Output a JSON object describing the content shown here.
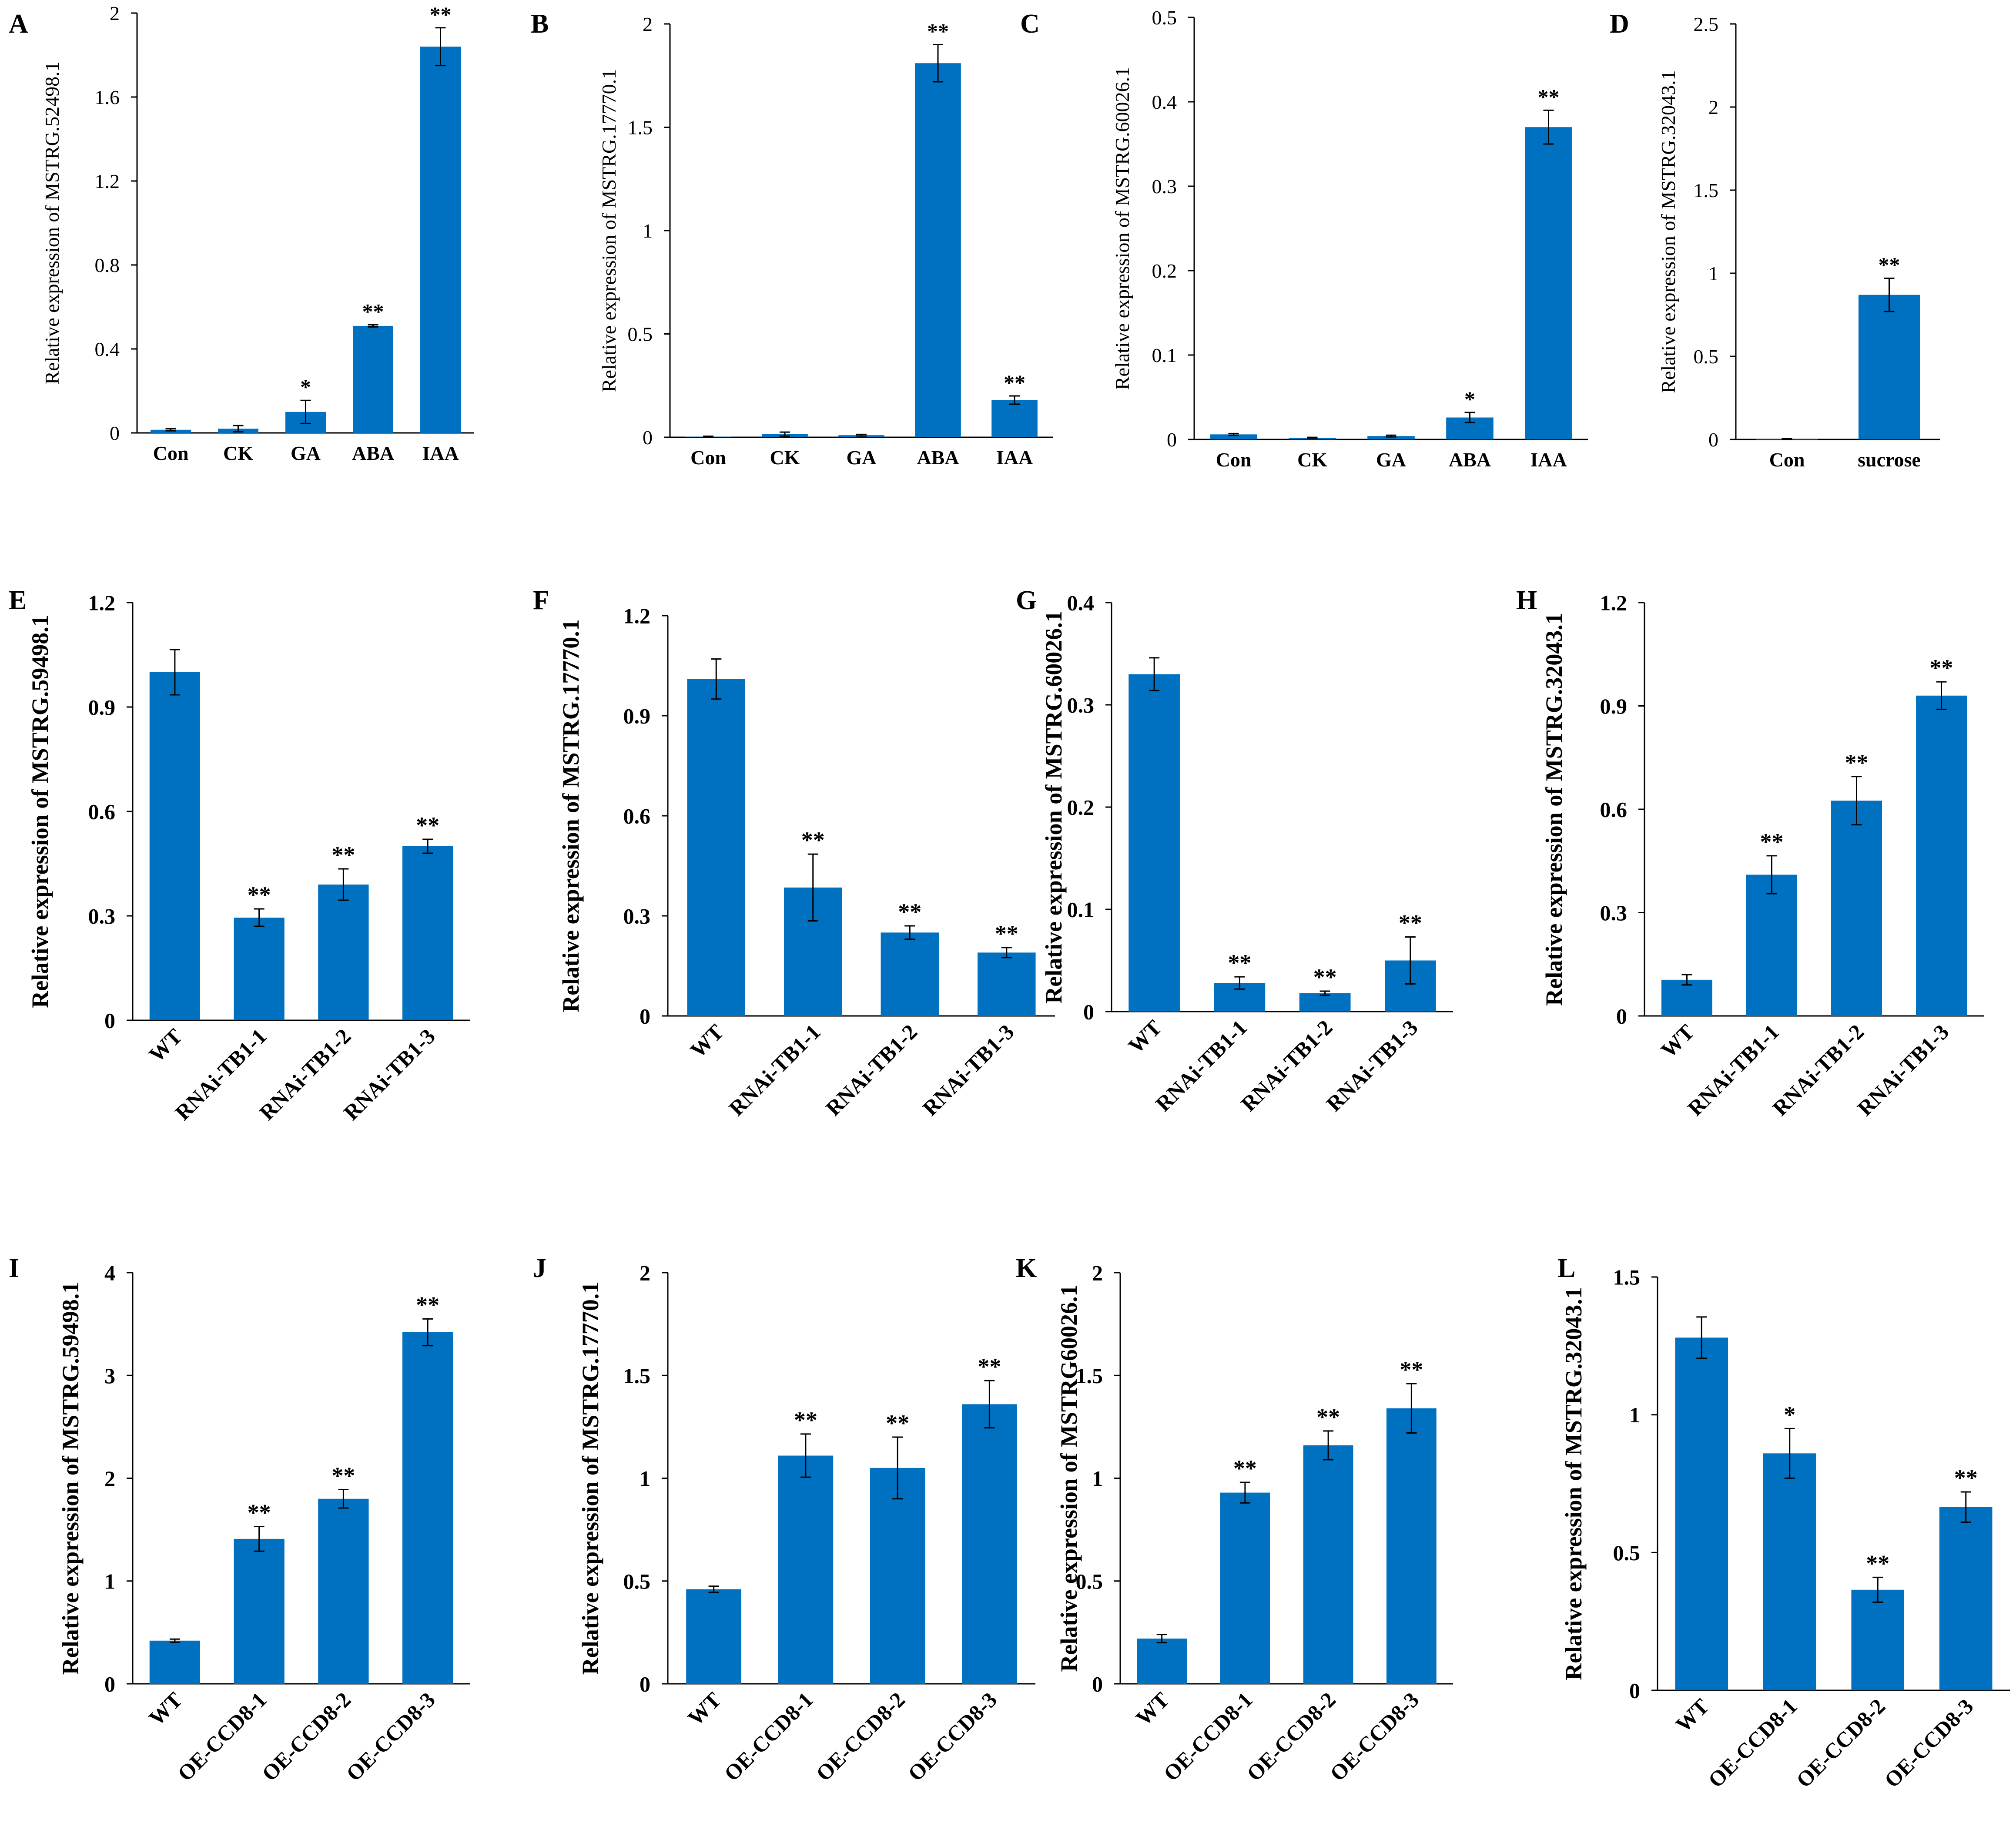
{
  "colors": {
    "bar": "#0070C0",
    "axis": "#000000",
    "text": "#000000"
  },
  "chart_data": [
    {
      "panel": "A",
      "type": "bar",
      "ylabel": "Relative expression of MSTRG.52498.1",
      "ylim": [
        0,
        2
      ],
      "ticks": [
        "0",
        "0.4",
        "0.8",
        "1.2",
        "1.6",
        "2"
      ],
      "categories": [
        "Con",
        "CK",
        "GA",
        "ABA",
        "IAA"
      ],
      "values": [
        0.015,
        0.02,
        0.1,
        0.51,
        1.84
      ],
      "errors": [
        0.005,
        0.015,
        0.055,
        0.005,
        0.09
      ],
      "sig": [
        "",
        "",
        "*",
        "**",
        "**"
      ],
      "rotated": false,
      "bold": false
    },
    {
      "panel": "B",
      "type": "bar",
      "ylabel": "Relative expression of MSTRG.17770.1",
      "ylim": [
        0,
        2
      ],
      "ticks": [
        "0",
        "0.5",
        "1",
        "1.5",
        "2"
      ],
      "categories": [
        "Con",
        "CK",
        "GA",
        "ABA",
        "IAA"
      ],
      "values": [
        0.003,
        0.015,
        0.01,
        1.81,
        0.18
      ],
      "errors": [
        0.002,
        0.01,
        0.004,
        0.09,
        0.02
      ],
      "sig": [
        "",
        "",
        "",
        "**",
        "**"
      ],
      "rotated": false,
      "bold": false
    },
    {
      "panel": "C",
      "type": "bar",
      "ylabel": "Relative expression of MSTRG.60026.1",
      "ylim": [
        0,
        0.5
      ],
      "ticks": [
        "0",
        "0.1",
        "0.2",
        "0.3",
        "0.4",
        "0.5"
      ],
      "categories": [
        "Con",
        "CK",
        "GA",
        "ABA",
        "IAA"
      ],
      "values": [
        0.006,
        0.002,
        0.004,
        0.026,
        0.37
      ],
      "errors": [
        0.001,
        0.0005,
        0.001,
        0.006,
        0.02
      ],
      "sig": [
        "",
        "",
        "",
        "*",
        "**"
      ],
      "rotated": false,
      "bold": false
    },
    {
      "panel": "D",
      "type": "bar",
      "ylabel": "Relative expression of MSTRG.32043.1",
      "ylim": [
        0,
        2.5
      ],
      "ticks": [
        "0",
        "0.5",
        "1",
        "1.5",
        "2",
        "2.5"
      ],
      "categories": [
        "Con",
        "sucrose"
      ],
      "values": [
        0.003,
        0.87
      ],
      "errors": [
        0.001,
        0.1
      ],
      "sig": [
        "",
        "**"
      ],
      "rotated": false,
      "bold": false
    },
    {
      "panel": "E",
      "type": "bar",
      "ylabel": "Relative expression of MSTRG.59498.1",
      "ylim": [
        0,
        1.2
      ],
      "ticks": [
        "0",
        "0.3",
        "0.6",
        "0.9",
        "1.2"
      ],
      "categories": [
        "WT",
        "RNAi-TB1-1",
        "RNAi-TB1-2",
        "RNAi-TB1-3"
      ],
      "values": [
        1.0,
        0.295,
        0.39,
        0.5
      ],
      "errors": [
        0.065,
        0.025,
        0.045,
        0.02
      ],
      "sig": [
        "",
        "**",
        "**",
        "**"
      ],
      "rotated": true,
      "bold": true
    },
    {
      "panel": "F",
      "type": "bar",
      "ylabel": "Relative expression of MSTRG.17770.1",
      "ylim": [
        0,
        1.2
      ],
      "ticks": [
        "0",
        "0.3",
        "0.6",
        "0.9",
        "1.2"
      ],
      "categories": [
        "WT",
        "RNAi-TB1-1",
        "RNAi-TB1-2",
        "RNAi-TB1-3"
      ],
      "values": [
        1.01,
        0.385,
        0.25,
        0.19
      ],
      "errors": [
        0.06,
        0.1,
        0.02,
        0.015
      ],
      "sig": [
        "",
        "**",
        "**",
        "**"
      ],
      "rotated": true,
      "bold": true
    },
    {
      "panel": "G",
      "type": "bar",
      "ylabel": "Relative expression of MSTRG.60026.1",
      "ylim": [
        0,
        0.4
      ],
      "ticks": [
        "0",
        "0.1",
        "0.2",
        "0.3",
        "0.4"
      ],
      "categories": [
        "WT",
        "RNAi-TB1-1",
        "RNAi-TB1-2",
        "RNAi-TB1-3"
      ],
      "values": [
        0.33,
        0.028,
        0.018,
        0.05
      ],
      "errors": [
        0.016,
        0.006,
        0.002,
        0.023
      ],
      "sig": [
        "",
        "**",
        "**",
        "**"
      ],
      "rotated": true,
      "bold": true
    },
    {
      "panel": "H",
      "type": "bar",
      "ylabel": "Relative expression of MSTRG.32043.1",
      "ylim": [
        0,
        1.2
      ],
      "ticks": [
        "0",
        "0.3",
        "0.6",
        "0.9",
        "1.2"
      ],
      "categories": [
        "WT",
        "RNAi-TB1-1",
        "RNAi-TB1-2",
        "RNAi-TB1-3"
      ],
      "values": [
        0.105,
        0.41,
        0.625,
        0.93
      ],
      "errors": [
        0.015,
        0.055,
        0.07,
        0.04
      ],
      "sig": [
        "",
        "**",
        "**",
        "**"
      ],
      "rotated": true,
      "bold": true
    },
    {
      "panel": "I",
      "type": "bar",
      "ylabel": "Relative expression of MSTRG.59498.1",
      "ylim": [
        0,
        4
      ],
      "ticks": [
        "0",
        "1",
        "2",
        "3",
        "4"
      ],
      "categories": [
        "WT",
        "OE-CCD8-1",
        "OE-CCD8-2",
        "OE-CCD8-3"
      ],
      "values": [
        0.42,
        1.41,
        1.8,
        3.42
      ],
      "errors": [
        0.015,
        0.12,
        0.09,
        0.13
      ],
      "sig": [
        "",
        "**",
        "**",
        "**"
      ],
      "rotated": true,
      "bold": true
    },
    {
      "panel": "J",
      "type": "bar",
      "ylabel": "Relative expression of MSTRG.17770.1",
      "ylim": [
        0,
        2
      ],
      "ticks": [
        "0",
        "0.5",
        "1",
        "1.5",
        "2"
      ],
      "categories": [
        "WT",
        "OE-CCD8-1",
        "OE-CCD8-2",
        "OE-CCD8-3"
      ],
      "values": [
        0.46,
        1.11,
        1.05,
        1.36
      ],
      "errors": [
        0.015,
        0.105,
        0.15,
        0.115
      ],
      "sig": [
        "",
        "**",
        "**",
        "**"
      ],
      "rotated": true,
      "bold": true
    },
    {
      "panel": "K",
      "type": "bar",
      "ylabel": "Relative expression of MSTRG60026.1",
      "ylim": [
        0,
        2
      ],
      "ticks": [
        "0",
        "0.5",
        "1",
        "1.5",
        "2"
      ],
      "categories": [
        "WT",
        "OE-CCD8-1",
        "OE-CCD8-2",
        "OE-CCD8-3"
      ],
      "values": [
        0.22,
        0.93,
        1.16,
        1.34
      ],
      "errors": [
        0.02,
        0.05,
        0.07,
        0.12
      ],
      "sig": [
        "",
        "**",
        "**",
        "**"
      ],
      "rotated": true,
      "bold": true
    },
    {
      "panel": "L",
      "type": "bar",
      "ylabel": "Relative expression of MSTRG.32043.1",
      "ylim": [
        0,
        1.5
      ],
      "ticks": [
        "0",
        "0.5",
        "1",
        "1.5"
      ],
      "categories": [
        "WT",
        "OE-CCD8-1",
        "OE-CCD8-2",
        "OE-CCD8-3"
      ],
      "values": [
        1.28,
        0.86,
        0.365,
        0.665
      ],
      "errors": [
        0.075,
        0.09,
        0.045,
        0.055
      ],
      "sig": [
        "",
        "*",
        "**",
        "**"
      ],
      "rotated": true,
      "bold": true
    }
  ]
}
